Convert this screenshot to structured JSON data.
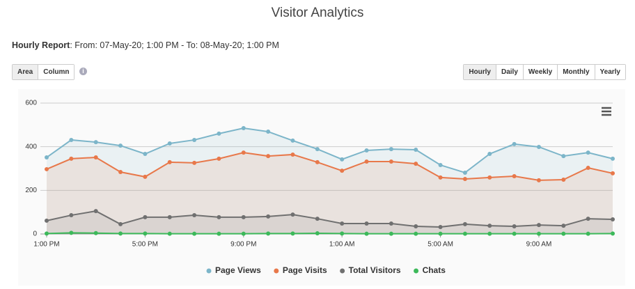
{
  "header": {
    "title": "Visitor Analytics"
  },
  "report": {
    "label": "Hourly Report",
    "range": ": From: 07-May-20; 1:00 PM - To: 08-May-20; 1:00 PM"
  },
  "chart_type_buttons": [
    "Area",
    "Column"
  ],
  "period_buttons": [
    "Hourly",
    "Daily",
    "Weekly",
    "Monthly",
    "Yearly"
  ],
  "chart_data": {
    "type": "area",
    "categories": [
      "1:00 PM",
      null,
      null,
      null,
      "5:00 PM",
      null,
      null,
      null,
      "9:00 PM",
      null,
      null,
      null,
      "1:00 AM",
      null,
      null,
      null,
      "5:00 AM",
      null,
      null,
      null,
      "9:00 AM",
      null,
      null,
      null
    ],
    "series": [
      {
        "name": "Page Views",
        "color": "#7cb5c9",
        "values": [
          351,
          431,
          421,
          405,
          367,
          415,
          431,
          460,
          485,
          469,
          428,
          389,
          342,
          383,
          389,
          386,
          316,
          281,
          367,
          412,
          399,
          357,
          373,
          345
        ]
      },
      {
        "name": "Page Visits",
        "color": "#e8784a",
        "values": [
          297,
          345,
          351,
          284,
          262,
          329,
          326,
          345,
          373,
          357,
          364,
          329,
          290,
          332,
          332,
          322,
          259,
          252,
          259,
          265,
          246,
          249,
          303,
          278
        ]
      },
      {
        "name": "Total Visitors",
        "color": "#707070",
        "values": [
          61,
          86,
          105,
          45,
          77,
          77,
          86,
          77,
          77,
          80,
          89,
          70,
          48,
          48,
          48,
          35,
          32,
          45,
          38,
          35,
          41,
          38,
          70,
          67
        ]
      },
      {
        "name": "Chats",
        "color": "#3cb95a",
        "values": [
          2,
          5,
          4,
          2,
          2,
          1,
          1,
          1,
          1,
          2,
          2,
          3,
          2,
          1,
          1,
          1,
          1,
          1,
          1,
          1,
          1,
          1,
          1,
          2
        ]
      }
    ],
    "ylim": [
      0,
      600
    ],
    "yticks": [
      0,
      200,
      400,
      600
    ],
    "grid": true,
    "legend": "bottom"
  }
}
